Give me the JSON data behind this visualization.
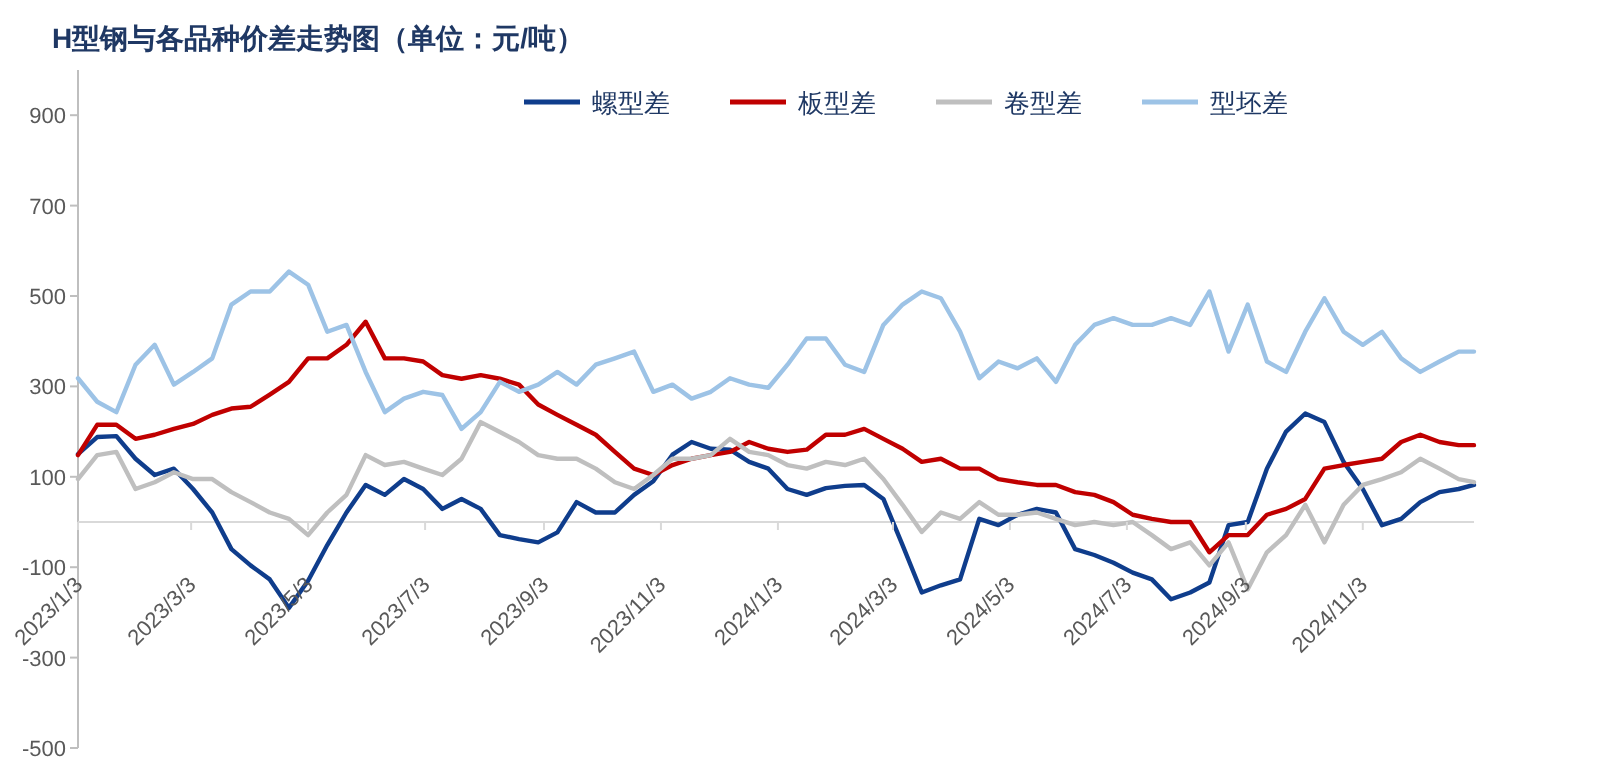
{
  "chart_data": {
    "type": "line",
    "title": "H型钢与各品种价差走势图（单位：元/吨）",
    "x": [
      "2023-01-03",
      "2023-01-13",
      "2023-01-23",
      "2023-02-02",
      "2023-02-12",
      "2023-02-22",
      "2023-03-04",
      "2023-03-14",
      "2023-03-24",
      "2023-04-03",
      "2023-04-13",
      "2023-04-23",
      "2023-05-03",
      "2023-05-13",
      "2023-05-23",
      "2023-06-02",
      "2023-06-12",
      "2023-06-22",
      "2023-07-02",
      "2023-07-12",
      "2023-07-22",
      "2023-08-01",
      "2023-08-11",
      "2023-08-21",
      "2023-08-31",
      "2023-09-10",
      "2023-09-20",
      "2023-09-30",
      "2023-10-10",
      "2023-10-20",
      "2023-10-30",
      "2023-11-09",
      "2023-11-19",
      "2023-11-29",
      "2023-12-09",
      "2023-12-19",
      "2023-12-29",
      "2024-01-08",
      "2024-01-18",
      "2024-01-28",
      "2024-02-07",
      "2024-02-17",
      "2024-02-27",
      "2024-03-08",
      "2024-03-18",
      "2024-03-28",
      "2024-04-07",
      "2024-04-17",
      "2024-04-27",
      "2024-05-07",
      "2024-05-17",
      "2024-05-27",
      "2024-06-06",
      "2024-06-16",
      "2024-06-26",
      "2024-07-06",
      "2024-07-16",
      "2024-07-26",
      "2024-08-05",
      "2024-08-15",
      "2024-08-25",
      "2024-09-04",
      "2024-09-14",
      "2024-09-24",
      "2024-10-04",
      "2024-10-14",
      "2024-10-24",
      "2024-11-03",
      "2024-11-13",
      "2024-11-23",
      "2024-12-03",
      "2024-12-13",
      "2024-12-23",
      "2024-12-31"
    ],
    "series": [
      {
        "name": "螺型差",
        "color": "#0f3d8c",
        "values": [
          150,
          188,
          190,
          140,
          104,
          118,
          73,
          21,
          -60,
          -96,
          -127,
          -190,
          -130,
          -51,
          21,
          82,
          60,
          95,
          73,
          29,
          51,
          29,
          -29,
          -38,
          -45,
          -23,
          44,
          21,
          21,
          60,
          90,
          149,
          177,
          162,
          160,
          133,
          118,
          73,
          60,
          75,
          80,
          82,
          51,
          -51,
          -156,
          -140,
          -127,
          7,
          -7,
          16,
          29,
          21,
          -60,
          -73,
          -90,
          -112,
          -127,
          -171,
          -156,
          -134,
          -7,
          0,
          118,
          200,
          240,
          221,
          133,
          73,
          -7,
          7,
          44,
          66,
          73,
          82
        ]
      },
      {
        "name": "板型差",
        "color": "#c00000",
        "values": [
          148,
          215,
          215,
          184,
          193,
          206,
          217,
          237,
          251,
          255,
          282,
          310,
          362,
          362,
          392,
          443,
          362,
          362,
          355,
          325,
          317,
          325,
          317,
          304,
          260,
          237,
          215,
          193,
          155,
          118,
          104,
          126,
          140,
          148,
          155,
          177,
          162,
          155,
          160,
          193,
          193,
          206,
          184,
          162,
          133,
          140,
          118,
          118,
          95,
          88,
          82,
          82,
          66,
          60,
          44,
          16,
          7,
          0,
          0,
          -67,
          -29,
          -29,
          16,
          29,
          51,
          118,
          126,
          133,
          140,
          177,
          193,
          177,
          170,
          170
        ]
      },
      {
        "name": "卷型差",
        "color": "#bfbfbf",
        "values": [
          95,
          148,
          155,
          73,
          88,
          110,
          95,
          95,
          66,
          44,
          21,
          7,
          -29,
          21,
          60,
          148,
          126,
          133,
          118,
          104,
          140,
          221,
          199,
          177,
          148,
          140,
          140,
          118,
          88,
          73,
          104,
          140,
          140,
          148,
          184,
          155,
          148,
          126,
          118,
          133,
          126,
          140,
          95,
          38,
          -22,
          21,
          7,
          44,
          16,
          16,
          21,
          7,
          -7,
          0,
          -7,
          0,
          -29,
          -60,
          -45,
          -96,
          -45,
          -149,
          -67,
          -29,
          38,
          -45,
          38,
          82,
          95,
          110,
          140,
          118,
          95,
          88
        ]
      },
      {
        "name": "型坯差",
        "color": "#9dc3e6",
        "values": [
          318,
          266,
          243,
          348,
          392,
          304,
          332,
          362,
          481,
          510,
          510,
          554,
          525,
          421,
          436,
          332,
          243,
          273,
          288,
          281,
          206,
          243,
          310,
          288,
          304,
          332,
          304,
          348,
          362,
          377,
          288,
          304,
          273,
          288,
          318,
          304,
          297,
          348,
          406,
          406,
          348,
          332,
          436,
          481,
          510,
          495,
          421,
          318,
          355,
          340,
          362,
          310,
          392,
          436,
          451,
          436,
          436,
          451,
          436,
          510,
          377,
          481,
          355,
          332,
          421,
          495,
          421,
          392,
          421,
          362,
          332,
          355,
          377,
          377
        ]
      }
    ],
    "xlim": [
      "2023-01-03",
      "2024-12-31"
    ],
    "xticks": [
      {
        "value": "2023-01-03",
        "label": "2023/1/3"
      },
      {
        "value": "2023-03-03",
        "label": "2023/3/3"
      },
      {
        "value": "2023-05-03",
        "label": "2023/5/3"
      },
      {
        "value": "2023-07-03",
        "label": "2023/7/3"
      },
      {
        "value": "2023-09-03",
        "label": "2023/9/3"
      },
      {
        "value": "2023-11-03",
        "label": "2023/11/3"
      },
      {
        "value": "2024-01-03",
        "label": "2024/1/3"
      },
      {
        "value": "2024-03-03",
        "label": "2024/3/3"
      },
      {
        "value": "2024-05-03",
        "label": "2024/5/3"
      },
      {
        "value": "2024-07-03",
        "label": "2024/7/3"
      },
      {
        "value": "2024-09-03",
        "label": "2024/9/3"
      },
      {
        "value": "2024-11-03",
        "label": "2024/11/3"
      }
    ],
    "ylim": [
      -500,
      1000
    ],
    "yticks": [
      -500,
      -300,
      -100,
      100,
      300,
      500,
      700,
      900
    ],
    "legend": "top",
    "marker": "none",
    "line_style": "solid"
  }
}
